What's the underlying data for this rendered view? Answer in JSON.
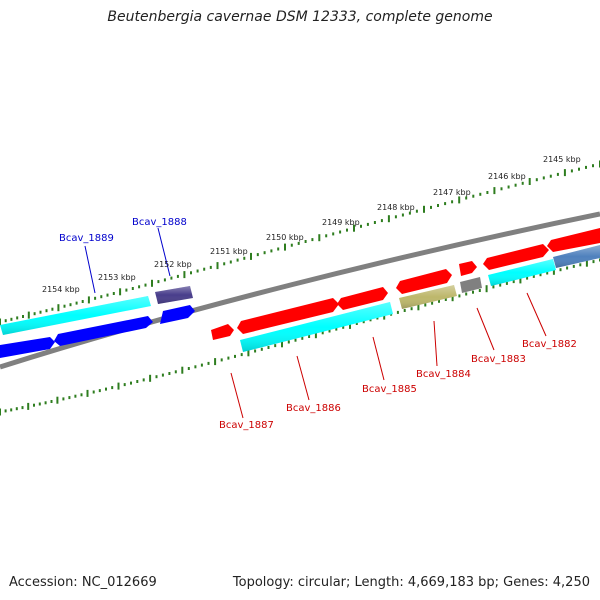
{
  "title": "Beutenbergia cavernae DSM 12333, complete genome",
  "accession": "Accession: NC_012669",
  "summary": "Topology: circular; Length: 4,669,183 bp; Genes: 4,250",
  "colors": {
    "backbone": "#808080",
    "tick": "#2e7d1f",
    "forward_label": "#cc0000",
    "reverse_label": "#0000cc",
    "label_line_forward": "#cc0000",
    "label_line_reverse": "#0000cc"
  },
  "ruler_upper": {
    "ticks_kbp": [
      {
        "label": "2145 kbp"
      },
      {
        "label": "2146 kbp"
      },
      {
        "label": "2147 kbp"
      },
      {
        "label": "2148 kbp"
      },
      {
        "label": "2149 kbp"
      },
      {
        "label": "2150 kbp"
      },
      {
        "label": "2151 kbp"
      },
      {
        "label": "2152 kbp"
      },
      {
        "label": "2153 kbp"
      },
      {
        "label": "2154 kbp"
      }
    ]
  },
  "genes_forward": [
    {
      "name": "Bcav_1882",
      "color": "#ff0000"
    },
    {
      "name": "Bcav_1883",
      "color": "#ff0000"
    },
    {
      "name": "Bcav_1884",
      "color": "#bdb76b"
    },
    {
      "name": "Bcav_1885",
      "color": "#ff0000"
    },
    {
      "name": "Bcav_1886",
      "color": "#ff0000"
    },
    {
      "name": "Bcav_1887",
      "color": "#ff0000"
    }
  ],
  "genes_forward_unlabeled": [
    {
      "color": "#ff0000"
    },
    {
      "color": "#00ffff"
    },
    {
      "color": "#00ffff"
    },
    {
      "color": "#808080"
    },
    {
      "color": "#4f81bd"
    }
  ],
  "genes_reverse": [
    {
      "name": "Bcav_1888",
      "color": "#483d8b"
    },
    {
      "name": "Bcav_1889",
      "color": "#00ffff"
    }
  ],
  "genes_reverse_unlabeled": [
    {
      "color": "#0000ff"
    },
    {
      "color": "#0000ff"
    },
    {
      "color": "#0000ff"
    }
  ]
}
